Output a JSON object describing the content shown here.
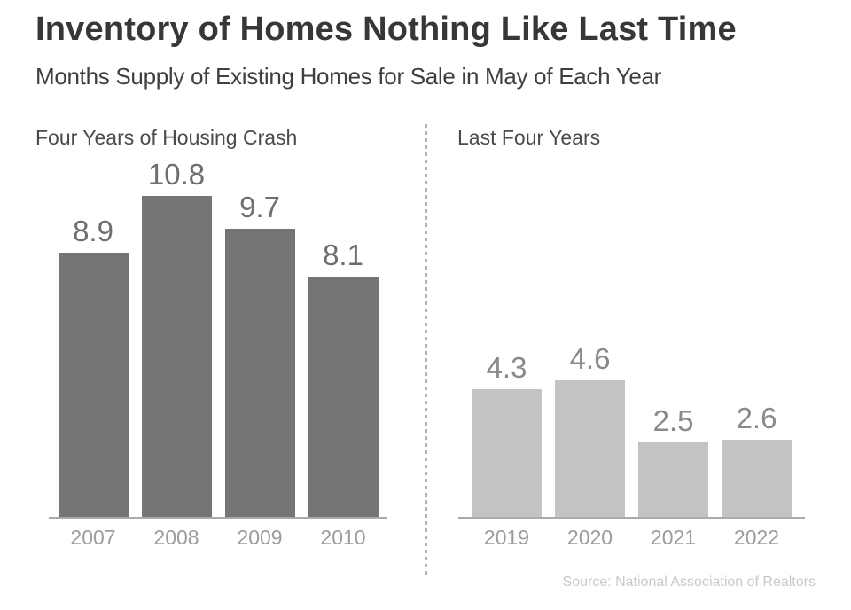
{
  "header": {
    "title": "Inventory of Homes Nothing Like Last Time",
    "subtitle": "Months Supply of Existing Homes for Sale in May of Each Year"
  },
  "footer": {
    "source": "Source: National Association of Realtors"
  },
  "chart_data": {
    "type": "bar",
    "title": "Inventory of Homes Nothing Like Last Time",
    "subtitle": "Months Supply of Existing Homes for Sale in May of Each Year",
    "unit": "months of supply",
    "grid": false,
    "legend": false,
    "ylim": [
      0,
      13.3
    ],
    "shared_scale": true,
    "panels": [
      {
        "label": "Four Years of Housing Crash",
        "categories": [
          "2007",
          "2008",
          "2009",
          "2010"
        ],
        "values": [
          8.9,
          10.8,
          9.7,
          8.1
        ],
        "bar_color": "#757575",
        "value_label_color": "#6e6e6e"
      },
      {
        "label": "Last Four Years",
        "categories": [
          "2019",
          "2020",
          "2021",
          "2022"
        ],
        "values": [
          4.3,
          4.6,
          2.5,
          2.6
        ],
        "bar_color": "#c3c3c3",
        "value_label_color": "#8a8a8a"
      }
    ],
    "source": "Source: National Association of Realtors",
    "colors": {
      "title_text": "#373737",
      "subtitle_text": "#3f3f3f",
      "panel_label_text": "#4a4a4a",
      "axis_line": "#aaaaaa",
      "tick_label_text": "#9c9c9c",
      "divider": "#b5b5b5",
      "source_text": "#c9c9c9",
      "background": "#ffffff"
    }
  }
}
